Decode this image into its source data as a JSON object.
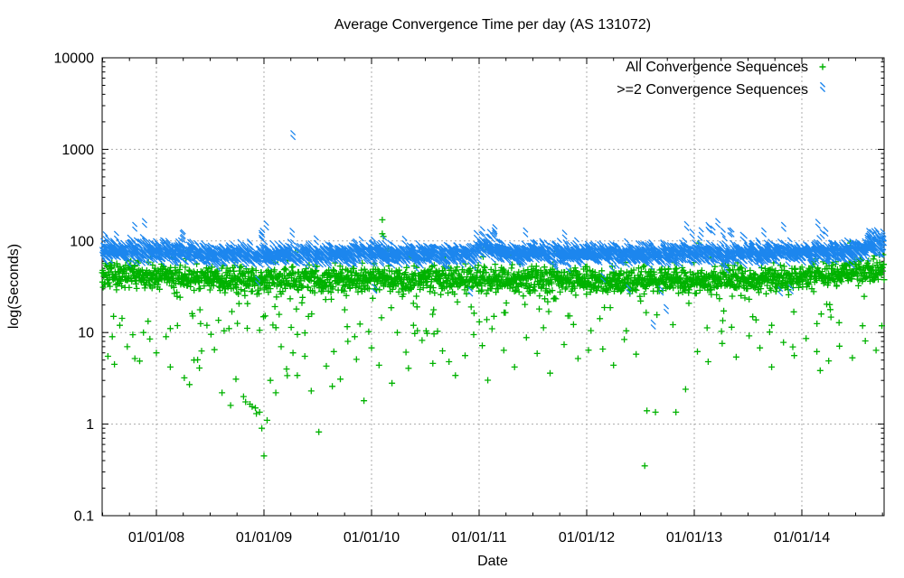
{
  "chart_data": {
    "type": "scatter",
    "title": "Average Convergence Time per day (AS 131072)",
    "xlabel": "Date",
    "ylabel": "log(Seconds)",
    "x_axis": {
      "kind": "time-years",
      "range": [
        2007.496,
        2014.765
      ],
      "major_ticks": [
        {
          "year": 2008,
          "label": "01/01/08"
        },
        {
          "year": 2009,
          "label": "01/01/09"
        },
        {
          "year": 2010,
          "label": "01/01/10"
        },
        {
          "year": 2011,
          "label": "01/01/11"
        },
        {
          "year": 2012,
          "label": "01/01/12"
        },
        {
          "year": 2013,
          "label": "01/01/13"
        },
        {
          "year": 2014,
          "label": "01/01/14"
        }
      ],
      "minor_tick_interval_years": 0.25,
      "grid_at_major": true
    },
    "y_axis": {
      "kind": "log10",
      "range": [
        0.1,
        10000
      ],
      "major_ticks": [
        {
          "value": 10000,
          "label": "10000"
        },
        {
          "value": 1000,
          "label": "1000"
        },
        {
          "value": 100,
          "label": "100"
        },
        {
          "value": 10,
          "label": "10"
        },
        {
          "value": 1,
          "label": "1"
        },
        {
          "value": 0.1,
          "label": "0.1"
        }
      ],
      "minor_tick_mantissas": [
        2,
        3,
        4,
        5,
        6,
        7,
        8,
        9
      ],
      "grid_at_major": true
    },
    "grid": {
      "color": "#ababab",
      "dash": "2,3"
    },
    "border_color": "#000000",
    "legend": {
      "position": "top-right-inside",
      "marker_side": "right"
    },
    "series": [
      {
        "name": "All Convergence Sequences",
        "marker": "plus",
        "color": "#00B200",
        "band": {
          "n": 2400,
          "seed": 1337,
          "mean_seconds": [
            [
              2007.496,
              43
            ],
            [
              2008.3,
              40
            ],
            [
              2009.3,
              37.5
            ],
            [
              2010.2,
              39
            ],
            [
              2011.0,
              38
            ],
            [
              2012.3,
              36.5
            ],
            [
              2013.3,
              37.5
            ],
            [
              2014.2,
              42
            ],
            [
              2014.6,
              46
            ],
            [
              2014.765,
              50
            ]
          ],
          "sd_log10": [
            [
              2007.496,
              0.085
            ],
            [
              2008.5,
              0.075
            ],
            [
              2014.765,
              0.07
            ]
          ],
          "excursions": [
            {
              "p": 0.055,
              "t0": 2007.496,
              "t1": 2010.6,
              "lo": 9,
              "hi": 26
            },
            {
              "p": 0.03,
              "t0": 2010.6,
              "t1": 2014.765,
              "lo": 10,
              "hi": 27
            },
            {
              "p": 0.01,
              "t0": 2007.496,
              "t1": 2010.6,
              "lo": 2.5,
              "hi": 9
            },
            {
              "p": 0.004,
              "t0": 2010.6,
              "t1": 2014.765,
              "lo": 3,
              "hi": 9
            },
            {
              "p": 0.008,
              "t0": 2007.496,
              "t1": 2014.765,
              "lo": 55,
              "hi": 85
            }
          ]
        },
        "outliers": [
          [
            2007.55,
            5.5
          ],
          [
            2007.59,
            9
          ],
          [
            2007.61,
            4.5
          ],
          [
            2007.66,
            12
          ],
          [
            2007.73,
            7
          ],
          [
            2007.8,
            5.2
          ],
          [
            2007.88,
            10
          ],
          [
            2007.94,
            8.5
          ],
          [
            2008.0,
            6
          ],
          [
            2008.09,
            9
          ],
          [
            2008.13,
            4.2
          ],
          [
            2008.26,
            3.2
          ],
          [
            2008.35,
            5
          ],
          [
            2008.4,
            4.1
          ],
          [
            2008.47,
            12
          ],
          [
            2008.54,
            6.5
          ],
          [
            2008.61,
            2.2
          ],
          [
            2008.69,
            1.6
          ],
          [
            2008.74,
            3.1
          ],
          [
            2008.81,
            2.0
          ],
          [
            2008.83,
            1.75
          ],
          [
            2008.87,
            1.65
          ],
          [
            2008.89,
            1.55
          ],
          [
            2008.92,
            1.5
          ],
          [
            2008.93,
            1.3
          ],
          [
            2008.96,
            1.35
          ],
          [
            2008.98,
            0.9
          ],
          [
            2009.0,
            0.45
          ],
          [
            2009.03,
            1.1
          ],
          [
            2009.06,
            3
          ],
          [
            2009.11,
            2.2
          ],
          [
            2009.16,
            7
          ],
          [
            2009.21,
            4
          ],
          [
            2009.27,
            6
          ],
          [
            2009.31,
            3.4
          ],
          [
            2009.38,
            5.5
          ],
          [
            2009.44,
            2.3
          ],
          [
            2009.51,
            0.82
          ],
          [
            2009.58,
            4.3
          ],
          [
            2009.65,
            6.2
          ],
          [
            2009.71,
            3.1
          ],
          [
            2009.78,
            8
          ],
          [
            2009.86,
            5.1
          ],
          [
            2009.93,
            1.8
          ],
          [
            2010.0,
            6.8
          ],
          [
            2010.07,
            4.4
          ],
          [
            2010.1,
            170
          ],
          [
            2010.1,
            120
          ],
          [
            2010.11,
            112
          ],
          [
            2010.19,
            2.8
          ],
          [
            2010.24,
            10
          ],
          [
            2010.32,
            6.1
          ],
          [
            2010.39,
            12
          ],
          [
            2010.47,
            8.2
          ],
          [
            2010.57,
            4.6
          ],
          [
            2010.66,
            6.3
          ],
          [
            2010.72,
            4.8
          ],
          [
            2010.78,
            3.4
          ],
          [
            2010.87,
            5.6
          ],
          [
            2010.95,
            9.5
          ],
          [
            2011.03,
            7.2
          ],
          [
            2011.12,
            11
          ],
          [
            2011.23,
            6.4
          ],
          [
            2011.33,
            4.2
          ],
          [
            2011.44,
            8.8
          ],
          [
            2011.54,
            5.9
          ],
          [
            2011.66,
            3.6
          ],
          [
            2011.79,
            7.4
          ],
          [
            2011.92,
            5.2
          ],
          [
            2012.04,
            10.5
          ],
          [
            2012.15,
            6.6
          ],
          [
            2012.25,
            4.4
          ],
          [
            2012.35,
            8.4
          ],
          [
            2012.46,
            5.8
          ],
          [
            2012.54,
            0.35
          ],
          [
            2012.56,
            1.4
          ],
          [
            2012.64,
            1.35
          ],
          [
            2012.83,
            1.35
          ],
          [
            2012.92,
            2.4
          ],
          [
            2013.03,
            6.2
          ],
          [
            2013.04,
            95
          ],
          [
            2013.13,
            4.8
          ],
          [
            2013.26,
            7.6
          ],
          [
            2013.39,
            5.4
          ],
          [
            2013.51,
            9.2
          ],
          [
            2013.61,
            6.8
          ],
          [
            2013.72,
            4.2
          ],
          [
            2013.83,
            7.8
          ],
          [
            2013.93,
            5.6
          ],
          [
            2014.04,
            8.6
          ],
          [
            2014.14,
            6.2
          ],
          [
            2014.25,
            4.9
          ],
          [
            2014.35,
            7.1
          ],
          [
            2014.45,
            95
          ],
          [
            2014.47,
            5.3
          ],
          [
            2014.59,
            8.1
          ],
          [
            2014.69,
            6.4
          ]
        ]
      },
      {
        "name": ">=2 Convergence Sequences",
        "marker": "cross",
        "color": "#1C86EE",
        "band": {
          "n": 2400,
          "seed": 4242,
          "mean_seconds": [
            [
              2007.496,
              74
            ],
            [
              2008.3,
              72
            ],
            [
              2008.45,
              66
            ],
            [
              2009.5,
              68
            ],
            [
              2010.95,
              68
            ],
            [
              2011.02,
              80
            ],
            [
              2011.12,
              77
            ],
            [
              2011.25,
              70
            ],
            [
              2012.5,
              68
            ],
            [
              2013.6,
              69
            ],
            [
              2014.55,
              72
            ],
            [
              2014.62,
              82
            ],
            [
              2014.765,
              85
            ]
          ],
          "sd_log10": [
            [
              2007.496,
              0.06
            ],
            [
              2008.4,
              0.045
            ],
            [
              2014.5,
              0.045
            ],
            [
              2014.765,
              0.055
            ]
          ],
          "excursions": [
            {
              "p": 0.006,
              "t0": 2007.496,
              "t1": 2014.765,
              "lo": 92,
              "hi": 135
            },
            {
              "p": 0.1,
              "t0": 2008.95,
              "t1": 2009.35,
              "lo": 95,
              "hi": 145
            },
            {
              "p": 0.18,
              "t0": 2010.95,
              "t1": 2011.15,
              "lo": 85,
              "hi": 130
            },
            {
              "p": 0.08,
              "t0": 2011.38,
              "t1": 2011.6,
              "lo": 88,
              "hi": 118
            },
            {
              "p": 0.08,
              "t0": 2012.95,
              "t1": 2013.35,
              "lo": 95,
              "hi": 135
            },
            {
              "p": 0.3,
              "t0": 2014.6,
              "t1": 2014.765,
              "lo": 85,
              "hi": 118
            },
            {
              "p": 0.003,
              "t0": 2007.496,
              "t1": 2014.765,
              "lo": 25,
              "hi": 42
            }
          ]
        },
        "outliers": [
          [
            2009.27,
            1350
          ],
          [
            2007.89,
            148
          ],
          [
            2008.25,
            112
          ],
          [
            2012.62,
            11.5
          ],
          [
            2012.74,
            17
          ],
          [
            2012.93,
            137
          ],
          [
            2013.13,
            134
          ],
          [
            2013.22,
            148
          ],
          [
            2013.45,
            105
          ],
          [
            2013.47,
            100
          ],
          [
            2014.15,
            145
          ],
          [
            2014.19,
            112
          ]
        ]
      }
    ]
  }
}
